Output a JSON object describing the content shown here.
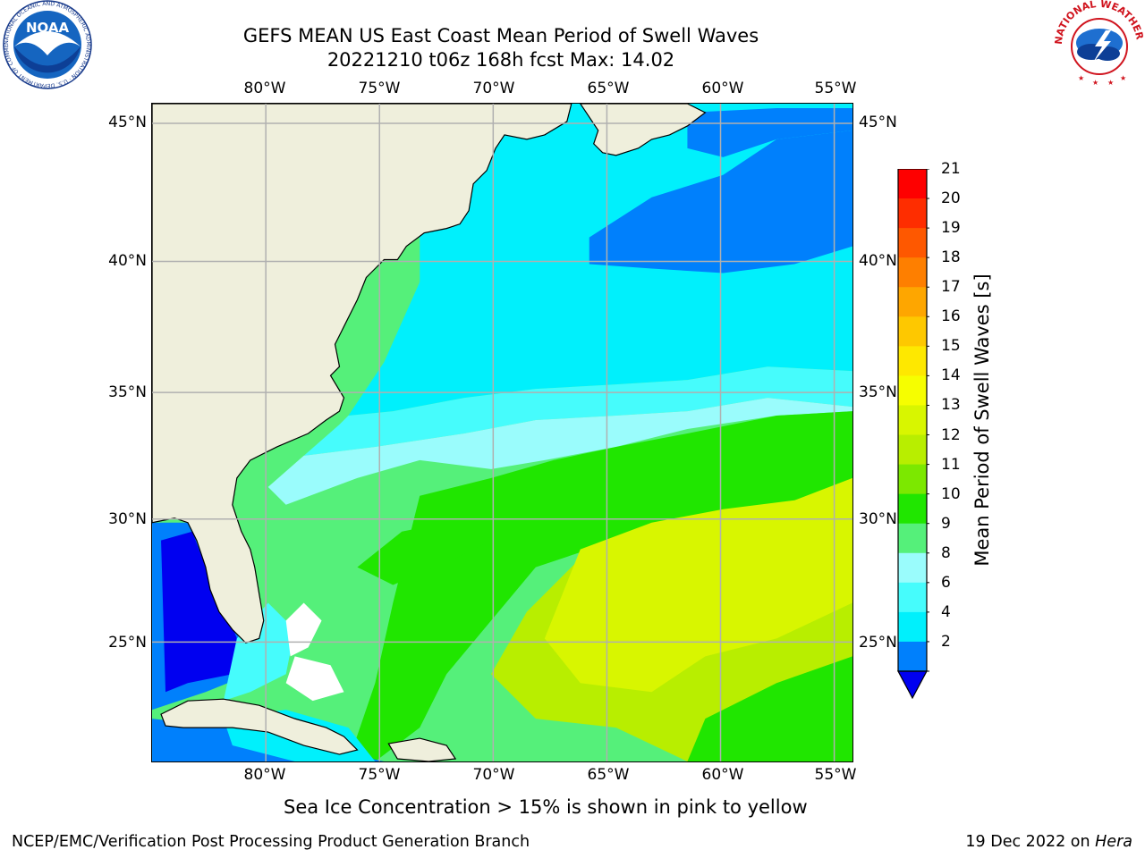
{
  "title": {
    "line1": "GEFS MEAN US East Coast Mean Period of Swell Waves",
    "line2": "20221210 t06z 168h fcst   Max: 14.02"
  },
  "axes": {
    "lon_labels": [
      "80°W",
      "75°W",
      "70°W",
      "65°W",
      "60°W",
      "55°W"
    ],
    "lon_values": [
      -80,
      -75,
      -70,
      -65,
      -60,
      -55
    ],
    "lat_labels": [
      "45°N",
      "40°N",
      "35°N",
      "30°N",
      "25°N"
    ],
    "lat_values": [
      45,
      40,
      35,
      30,
      25
    ],
    "lon_range": [
      -85,
      -54.2
    ],
    "lat_range": [
      20.4,
      45.8
    ]
  },
  "colorbar": {
    "title": "Mean Period of Swell Waves [s]",
    "ticks": [
      "21",
      "20",
      "19",
      "18",
      "17",
      "16",
      "15",
      "14",
      "13",
      "12",
      "11",
      "10",
      "9",
      "8",
      "6",
      "4",
      "2"
    ],
    "colors": [
      "#fe0000",
      "#fe2d00",
      "#fe5800",
      "#fe7f00",
      "#fea600",
      "#fec800",
      "#fee800",
      "#f6fe00",
      "#d8f600",
      "#b8ee00",
      "#7ce800",
      "#20e600",
      "#55f07a",
      "#9afcfc",
      "#46fcfc",
      "#00f0fc",
      "#0080fc"
    ],
    "extend_color": "#0000f0"
  },
  "map_colors": {
    "land": "#efefdc",
    "ice_free_white": "#ffffff",
    "grid": "#b0b0b0"
  },
  "note": "Sea Ice Concentration > 15% is shown in pink to yellow",
  "footer": {
    "left": "NCEP/EMC/Verification Post Processing Product Generation Branch",
    "right_date": "19 Dec 2022 on ",
    "right_host": "Hera"
  },
  "logos": {
    "noaa_text": "NOAA",
    "noaa_ring": "NATIONAL OCEANIC AND ATMOSPHERIC ADMINISTRATION · U.S. DEPARTMENT OF COMMERCE",
    "nws_ring": "NATIONAL WEATHER SERVICE"
  }
}
